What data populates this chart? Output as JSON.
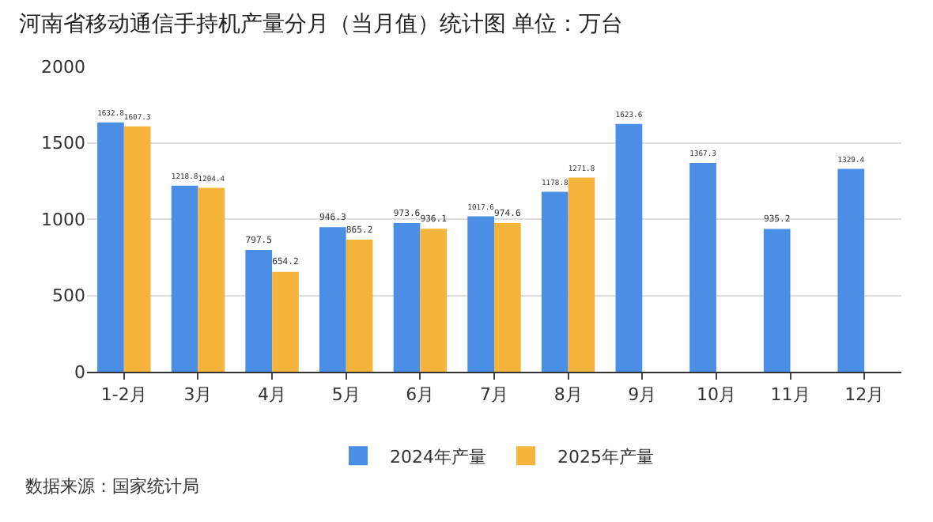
{
  "chart_data": {
    "type": "bar",
    "title": "河南省移动通信手持机产量分月（当月值）统计图 单位：万台",
    "categories": [
      "1-2月",
      "3月",
      "4月",
      "5月",
      "6月",
      "7月",
      "8月",
      "9月",
      "10月",
      "11月",
      "12月"
    ],
    "series": [
      {
        "name": "2024年产量",
        "color": "#4a8ee6",
        "values": [
          1632.8,
          1218.8,
          797.5,
          946.3,
          973.6,
          1017.6,
          1178.8,
          1623.6,
          1367.3,
          935.2,
          1329.4
        ]
      },
      {
        "name": "2025年产量",
        "color": "#f5b43c",
        "values": [
          1607.3,
          1204.4,
          654.2,
          865.2,
          936.1,
          974.6,
          1271.8,
          null,
          null,
          null,
          null
        ]
      }
    ],
    "ylim": [
      0,
      2000
    ],
    "yticks": [
      0,
      500,
      1000,
      1500,
      2000
    ],
    "grid": "y",
    "legend": "bottom",
    "data_labels": true,
    "annotations": [
      "数据来源：国家统计局"
    ]
  }
}
